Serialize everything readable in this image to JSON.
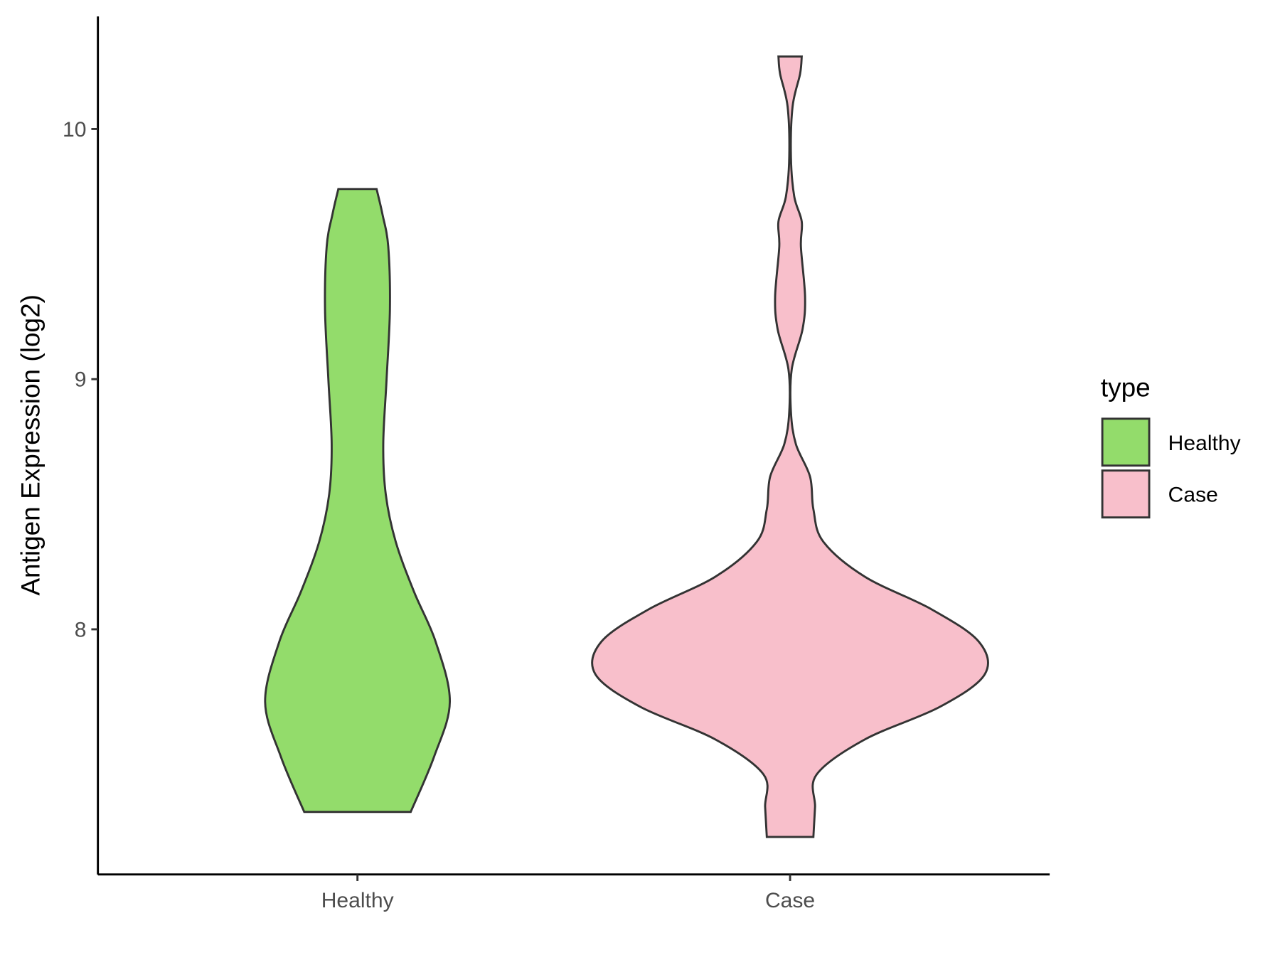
{
  "chart_data": {
    "type": "violin",
    "y_label": "Antigen Expression (log2)",
    "legend_title": "type",
    "categories": [
      "Healthy",
      "Case"
    ],
    "ylim": [
      7.02,
      10.45
    ],
    "yticks": [
      8,
      9,
      10
    ],
    "series": [
      {
        "name": "Healthy",
        "color": "#93dc6b",
        "y": [
          9.76,
          9.66,
          9.53,
          9.28,
          9.0,
          8.74,
          8.54,
          8.35,
          8.15,
          7.95,
          7.71,
          7.49,
          7.27
        ],
        "density": [
          0.23,
          0.3,
          0.37,
          0.39,
          0.35,
          0.31,
          0.34,
          0.46,
          0.68,
          0.94,
          1.11,
          0.92,
          0.64
        ]
      },
      {
        "name": "Case",
        "color": "#f8bfcb",
        "y": [
          10.29,
          10.22,
          10.09,
          9.89,
          9.73,
          9.63,
          9.53,
          9.33,
          9.2,
          9.04,
          8.87,
          8.74,
          8.61,
          8.48,
          8.35,
          8.21,
          8.08,
          7.95,
          7.82,
          7.69,
          7.56,
          7.42,
          7.29,
          7.17
        ],
        "density": [
          0.14,
          0.12,
          0.03,
          0.01,
          0.05,
          0.14,
          0.13,
          0.18,
          0.15,
          0.02,
          0.01,
          0.07,
          0.24,
          0.28,
          0.4,
          0.9,
          1.7,
          2.27,
          2.34,
          1.8,
          0.9,
          0.32,
          0.3,
          0.28
        ]
      }
    ]
  }
}
